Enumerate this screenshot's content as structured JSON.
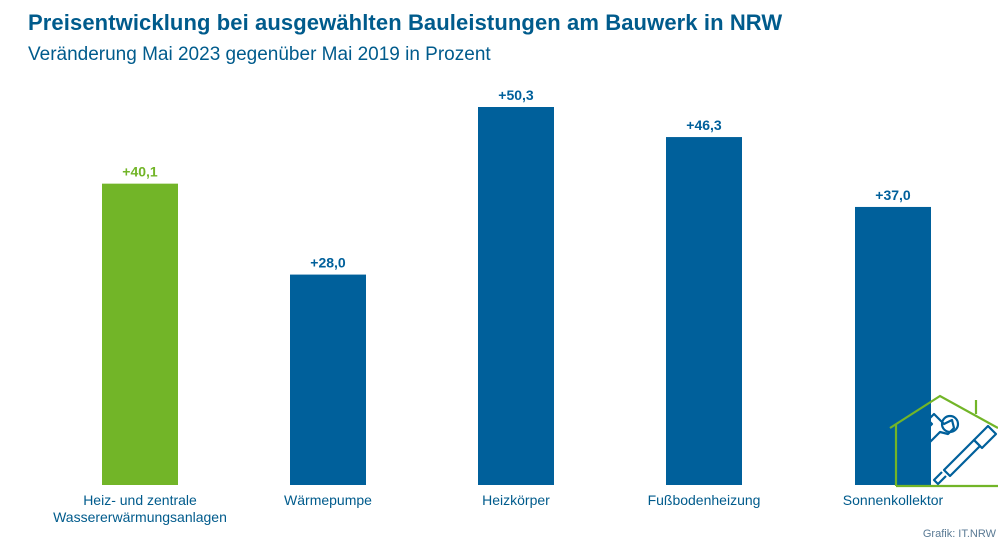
{
  "header": {
    "title": "Preisentwicklung bei ausgewählten Bauleistungen am Bauwerk in NRW",
    "subtitle": "Veränderung Mai 2023 gegenüber Mai 2019 in Prozent"
  },
  "footer": {
    "credit": "Grafik: IT.NRW"
  },
  "colors": {
    "highlight": "#72b528",
    "bar": "#00609b",
    "text": "#005b8c",
    "icon_house": "#72b528",
    "icon_tools": "#00609b"
  },
  "icons": [
    "house-tools-icon"
  ],
  "chart_data": {
    "type": "bar",
    "title": "Preisentwicklung bei ausgewählten Bauleistungen am Bauwerk in NRW",
    "subtitle": "Veränderung Mai 2023 gegenüber Mai 2019 in Prozent",
    "categories": [
      "Heiz- und zentrale\nWassererwärmungsanlagen",
      "Wärmepumpe",
      "Heizkörper",
      "Fußbodenheizung",
      "Sonnenkollektor"
    ],
    "values": [
      40.1,
      28.0,
      50.3,
      46.3,
      37.0
    ],
    "data_labels": [
      "+40,1",
      "+28,0",
      "+50,3",
      "+46,3",
      "+37,0"
    ],
    "highlighted": [
      true,
      false,
      false,
      false,
      false
    ],
    "xlabel": "",
    "ylabel": "",
    "ylim": [
      0,
      50.3
    ],
    "grid": false,
    "legend": "none"
  }
}
